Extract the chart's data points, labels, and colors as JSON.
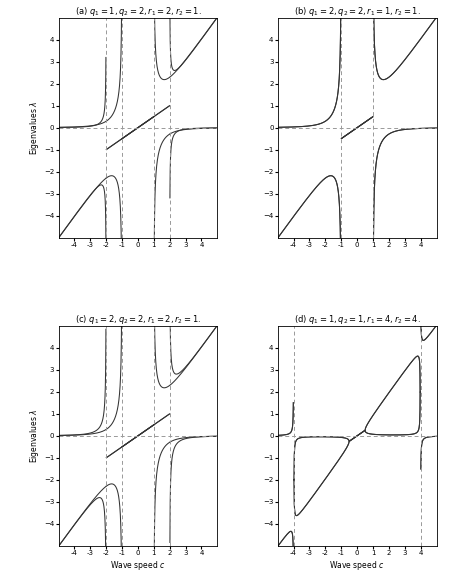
{
  "panels": [
    {
      "title": "(a) $q_1 = 1, q_2 = 2, r_1 = 2, r_2 = 1.$",
      "q1": 1,
      "q2": 2,
      "r1": 2,
      "r2": 1
    },
    {
      "title": "(b) $q_1 = 2, q_2 = 2, r_1 = 1, r_2 = 1.$",
      "q1": 2,
      "q2": 2,
      "r1": 1,
      "r2": 1
    },
    {
      "title": "(c) $q_1 = 2, q_2 = 2, r_1 = 2, r_2 = 1.$",
      "q1": 2,
      "q2": 2,
      "r1": 2,
      "r2": 1
    },
    {
      "title": "(d) $q_1 = 1, q_2 = 1, r_1 = 4, r_2 = 4.$",
      "q1": 1,
      "q2": 1,
      "r1": 4,
      "r2": 4
    }
  ],
  "xlim": [
    -5,
    5
  ],
  "ylim": [
    -5,
    5
  ],
  "xlabel": "Wave speed $c$",
  "ylabel": "Eigenvalues $\\lambda$",
  "line_color": "#333333",
  "dashed_color": "#999999",
  "figsize": [
    4.5,
    5.87
  ],
  "dpi": 100
}
